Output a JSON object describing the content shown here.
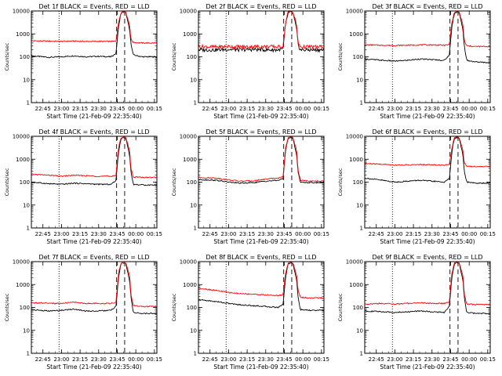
{
  "start_label": "Start Time (21-Feb-09 22:35:40)",
  "colors": {
    "events": "#000000",
    "lld": "#ff0000",
    "axes": "#000000",
    "background": "#ffffff"
  },
  "chart_data": [
    {
      "type": "line",
      "title": "Det 1f BLACK = Events, RED = LLD",
      "ylabel": "Counts/sec",
      "xlabel": "Start Time (21-Feb-09 22:35:40)",
      "x_ticks": [
        "22:45",
        "23:00",
        "23:15",
        "23:30",
        "23:45",
        "00:00",
        "00:15"
      ],
      "y_ticks": [
        "1",
        "10",
        "100",
        "1000",
        "10000"
      ],
      "yscale": "log",
      "ylim": [
        1,
        10000
      ],
      "xlim": [
        "22:35:40",
        "00:17:00"
      ],
      "grid": false,
      "series": [
        {
          "color": "#000000",
          "x": [
            "22:35:40",
            "22:50",
            "23:00",
            "23:10",
            "23:20",
            "23:30",
            "23:40",
            "23:44",
            "23:46",
            "23:48",
            "23:50",
            "23:52",
            "23:55",
            "23:56",
            "23:58",
            "00:05",
            "00:17"
          ],
          "y": [
            110,
            95,
            100,
            110,
            100,
            105,
            100,
            140,
            2000,
            8000,
            9000,
            8000,
            1500,
            400,
            120,
            100,
            100
          ]
        },
        {
          "color": "#ff0000",
          "x": [
            "22:35:40",
            "22:50",
            "23:00",
            "23:10",
            "23:20",
            "23:30",
            "23:40",
            "23:44",
            "23:46",
            "23:48",
            "23:50",
            "23:52",
            "23:55",
            "23:56",
            "23:58",
            "00:05",
            "00:17"
          ],
          "y": [
            500,
            480,
            470,
            480,
            470,
            470,
            470,
            480,
            3000,
            8500,
            9500,
            8500,
            2500,
            600,
            420,
            400,
            400
          ]
        }
      ]
    },
    {
      "type": "line",
      "title": "Det 2f BLACK = Events, RED = LLD",
      "ylabel": "Counts/sec",
      "xlabel": "Start Time (21-Feb-09 22:35:40)",
      "x_ticks": [
        "22:45",
        "23:00",
        "23:15",
        "23:30",
        "23:45",
        "00:00",
        "00:15"
      ],
      "y_ticks": [
        "1",
        "10",
        "100",
        "1000",
        "10000"
      ],
      "yscale": "log",
      "ylim": [
        1,
        10000
      ],
      "xlim": [
        "22:35:40",
        "00:17:00"
      ],
      "grid": false,
      "series": [
        {
          "color": "#000000",
          "x": [
            "22:35:40",
            "22:50",
            "23:00",
            "23:10",
            "23:20",
            "23:30",
            "23:40",
            "23:44",
            "23:46",
            "23:48",
            "23:50",
            "23:52",
            "23:55",
            "23:56",
            "23:58",
            "00:05",
            "00:17"
          ],
          "y": [
            200,
            200,
            210,
            200,
            210,
            200,
            200,
            220,
            2500,
            8000,
            9000,
            8000,
            1500,
            350,
            200,
            200,
            200
          ]
        },
        {
          "color": "#ff0000",
          "x": [
            "22:35:40",
            "22:50",
            "23:00",
            "23:10",
            "23:20",
            "23:30",
            "23:40",
            "23:44",
            "23:46",
            "23:48",
            "23:50",
            "23:52",
            "23:55",
            "23:56",
            "23:58",
            "00:05",
            "00:17"
          ],
          "y": [
            280,
            270,
            280,
            270,
            280,
            280,
            270,
            290,
            3000,
            8500,
            9500,
            8500,
            2500,
            400,
            270,
            270,
            270
          ]
        }
      ]
    },
    {
      "type": "line",
      "title": "Det 3f BLACK = Events, RED = LLD",
      "ylabel": "Counts/sec",
      "xlabel": "Start Time (21-Feb-09 22:35:40)",
      "x_ticks": [
        "22:45",
        "23:00",
        "23:15",
        "23:30",
        "23:45",
        "00:00",
        "00:15"
      ],
      "y_ticks": [
        "1",
        "10",
        "100",
        "1000",
        "10000"
      ],
      "yscale": "log",
      "ylim": [
        1,
        10000
      ],
      "xlim": [
        "22:35:40",
        "00:17:00"
      ],
      "grid": false,
      "series": [
        {
          "color": "#000000",
          "x": [
            "22:35:40",
            "22:50",
            "23:00",
            "23:10",
            "23:20",
            "23:30",
            "23:40",
            "23:44",
            "23:46",
            "23:48",
            "23:50",
            "23:52",
            "23:55",
            "23:56",
            "23:58",
            "00:05",
            "00:17"
          ],
          "y": [
            80,
            70,
            65,
            70,
            80,
            75,
            70,
            120,
            2000,
            8000,
            9000,
            8000,
            1500,
            300,
            70,
            60,
            55
          ]
        },
        {
          "color": "#ff0000",
          "x": [
            "22:35:40",
            "22:50",
            "23:00",
            "23:10",
            "23:20",
            "23:30",
            "23:40",
            "23:44",
            "23:46",
            "23:48",
            "23:50",
            "23:52",
            "23:55",
            "23:56",
            "23:58",
            "00:05",
            "00:17"
          ],
          "y": [
            330,
            320,
            310,
            320,
            330,
            330,
            320,
            340,
            3000,
            8500,
            9500,
            8500,
            2500,
            500,
            300,
            280,
            280
          ]
        }
      ]
    },
    {
      "type": "line",
      "title": "Det 4f BLACK = Events, RED = LLD",
      "ylabel": "Counts/sec",
      "xlabel": "Start Time (21-Feb-09 22:35:40)",
      "x_ticks": [
        "22:45",
        "23:00",
        "23:15",
        "23:30",
        "23:45",
        "00:00",
        "00:15"
      ],
      "y_ticks": [
        "1",
        "10",
        "100",
        "1000",
        "10000"
      ],
      "yscale": "log",
      "ylim": [
        1,
        10000
      ],
      "xlim": [
        "22:35:40",
        "00:17:00"
      ],
      "grid": false,
      "series": [
        {
          "color": "#000000",
          "x": [
            "22:35:40",
            "22:50",
            "23:00",
            "23:10",
            "23:20",
            "23:30",
            "23:40",
            "23:44",
            "23:46",
            "23:48",
            "23:50",
            "23:52",
            "23:55",
            "23:56",
            "23:58",
            "00:05",
            "00:17"
          ],
          "y": [
            100,
            85,
            80,
            90,
            85,
            80,
            80,
            120,
            2000,
            8000,
            9000,
            8000,
            1500,
            300,
            80,
            75,
            75
          ]
        },
        {
          "color": "#ff0000",
          "x": [
            "22:35:40",
            "22:50",
            "23:00",
            "23:10",
            "23:20",
            "23:30",
            "23:40",
            "23:44",
            "23:46",
            "23:48",
            "23:50",
            "23:52",
            "23:55",
            "23:56",
            "23:58",
            "00:05",
            "00:17"
          ],
          "y": [
            220,
            200,
            180,
            200,
            190,
            180,
            180,
            200,
            3000,
            8500,
            9500,
            8500,
            2500,
            400,
            170,
            160,
            160
          ]
        }
      ]
    },
    {
      "type": "line",
      "title": "Det 5f BLACK = Events, RED = LLD",
      "ylabel": "Counts/sec",
      "xlabel": "Start Time (21-Feb-09 22:35:40)",
      "x_ticks": [
        "22:45",
        "23:00",
        "23:15",
        "23:30",
        "23:45",
        "00:00",
        "00:15"
      ],
      "y_ticks": [
        "1",
        "10",
        "100",
        "1000",
        "10000"
      ],
      "yscale": "log",
      "ylim": [
        1,
        10000
      ],
      "xlim": [
        "22:35:40",
        "00:17:00"
      ],
      "grid": false,
      "series": [
        {
          "color": "#000000",
          "x": [
            "22:35:40",
            "22:50",
            "23:00",
            "23:10",
            "23:20",
            "23:30",
            "23:40",
            "23:44",
            "23:46",
            "23:48",
            "23:50",
            "23:52",
            "23:55",
            "23:56",
            "23:58",
            "00:05",
            "00:17"
          ],
          "y": [
            130,
            120,
            100,
            90,
            95,
            110,
            120,
            140,
            2500,
            8000,
            9000,
            8000,
            1500,
            300,
            100,
            95,
            95
          ]
        },
        {
          "color": "#ff0000",
          "x": [
            "22:35:40",
            "22:50",
            "23:00",
            "23:10",
            "23:20",
            "23:30",
            "23:40",
            "23:44",
            "23:46",
            "23:48",
            "23:50",
            "23:52",
            "23:55",
            "23:56",
            "23:58",
            "00:05",
            "00:17"
          ],
          "y": [
            160,
            150,
            125,
            110,
            115,
            135,
            150,
            170,
            3000,
            8500,
            9500,
            8500,
            2500,
            350,
            120,
            110,
            110
          ]
        }
      ]
    },
    {
      "type": "line",
      "title": "Det 6f BLACK = Events, RED = LLD",
      "ylabel": "Counts/sec",
      "xlabel": "Start Time (21-Feb-09 22:35:40)",
      "x_ticks": [
        "22:45",
        "23:00",
        "23:15",
        "23:30",
        "23:45",
        "00:00",
        "00:15"
      ],
      "y_ticks": [
        "1",
        "10",
        "100",
        "1000",
        "10000"
      ],
      "yscale": "log",
      "ylim": [
        1,
        10000
      ],
      "xlim": [
        "22:35:40",
        "00:17:00"
      ],
      "grid": false,
      "series": [
        {
          "color": "#000000",
          "x": [
            "22:35:40",
            "22:50",
            "23:00",
            "23:10",
            "23:20",
            "23:30",
            "23:40",
            "23:44",
            "23:46",
            "23:48",
            "23:50",
            "23:52",
            "23:55",
            "23:56",
            "23:58",
            "00:05",
            "00:17"
          ],
          "y": [
            150,
            120,
            100,
            110,
            120,
            110,
            100,
            140,
            2000,
            8000,
            9000,
            8000,
            1500,
            300,
            100,
            90,
            90
          ]
        },
        {
          "color": "#ff0000",
          "x": [
            "22:35:40",
            "22:50",
            "23:00",
            "23:10",
            "23:20",
            "23:30",
            "23:40",
            "23:44",
            "23:46",
            "23:48",
            "23:50",
            "23:52",
            "23:55",
            "23:56",
            "23:58",
            "00:05",
            "00:17"
          ],
          "y": [
            650,
            600,
            560,
            560,
            580,
            570,
            550,
            580,
            3000,
            8500,
            9500,
            8500,
            2500,
            700,
            500,
            480,
            480
          ]
        }
      ]
    },
    {
      "type": "line",
      "title": "Det 7f BLACK = Events, RED = LLD",
      "ylabel": "Counts/sec",
      "xlabel": "Start Time (21-Feb-09 22:35:40)",
      "x_ticks": [
        "22:45",
        "23:00",
        "23:15",
        "23:30",
        "23:45",
        "00:00",
        "00:15"
      ],
      "y_ticks": [
        "1",
        "10",
        "100",
        "1000",
        "10000"
      ],
      "yscale": "log",
      "ylim": [
        1,
        10000
      ],
      "xlim": [
        "22:35:40",
        "00:17:00"
      ],
      "grid": false,
      "series": [
        {
          "color": "#000000",
          "x": [
            "22:35:40",
            "22:50",
            "23:00",
            "23:10",
            "23:20",
            "23:30",
            "23:40",
            "23:44",
            "23:46",
            "23:48",
            "23:50",
            "23:52",
            "23:55",
            "23:56",
            "23:58",
            "00:05",
            "00:17"
          ],
          "y": [
            80,
            70,
            75,
            85,
            70,
            70,
            75,
            110,
            2000,
            8000,
            9000,
            8000,
            1500,
            300,
            60,
            55,
            55
          ]
        },
        {
          "color": "#ff0000",
          "x": [
            "22:35:40",
            "22:50",
            "23:00",
            "23:10",
            "23:20",
            "23:30",
            "23:40",
            "23:44",
            "23:46",
            "23:48",
            "23:50",
            "23:52",
            "23:55",
            "23:56",
            "23:58",
            "00:05",
            "00:17"
          ],
          "y": [
            160,
            150,
            150,
            170,
            150,
            150,
            150,
            170,
            3000,
            8500,
            9500,
            8500,
            2500,
            400,
            120,
            110,
            110
          ]
        }
      ]
    },
    {
      "type": "line",
      "title": "Det 8f BLACK = Events, RED = LLD",
      "ylabel": "Counts/sec",
      "xlabel": "Start Time (21-Feb-09 22:35:40)",
      "x_ticks": [
        "22:45",
        "23:00",
        "23:15",
        "23:30",
        "23:45",
        "00:00",
        "00:15"
      ],
      "y_ticks": [
        "1",
        "10",
        "100",
        "1000",
        "10000"
      ],
      "yscale": "log",
      "ylim": [
        1,
        10000
      ],
      "xlim": [
        "22:35:40",
        "00:17:00"
      ],
      "grid": false,
      "series": [
        {
          "color": "#000000",
          "x": [
            "22:35:40",
            "22:50",
            "23:00",
            "23:10",
            "23:20",
            "23:30",
            "23:40",
            "23:44",
            "23:46",
            "23:48",
            "23:50",
            "23:52",
            "23:55",
            "23:56",
            "23:58",
            "00:05",
            "00:17"
          ],
          "y": [
            220,
            180,
            150,
            130,
            120,
            110,
            100,
            140,
            2000,
            8000,
            9000,
            8000,
            1500,
            300,
            80,
            75,
            75
          ]
        },
        {
          "color": "#ff0000",
          "x": [
            "22:35:40",
            "22:50",
            "23:00",
            "23:10",
            "23:20",
            "23:30",
            "23:40",
            "23:44",
            "23:46",
            "23:48",
            "23:50",
            "23:52",
            "23:55",
            "23:56",
            "23:58",
            "00:05",
            "00:17"
          ],
          "y": [
            700,
            550,
            450,
            400,
            380,
            350,
            330,
            360,
            3000,
            8500,
            9500,
            8500,
            2500,
            600,
            280,
            260,
            260
          ]
        }
      ]
    },
    {
      "type": "line",
      "title": "Det 9f BLACK = Events, RED = LLD",
      "ylabel": "Counts/sec",
      "xlabel": "Start Time (21-Feb-09 22:35:40)",
      "x_ticks": [
        "22:45",
        "23:00",
        "23:15",
        "23:30",
        "23:45",
        "00:00",
        "00:15"
      ],
      "y_ticks": [
        "1",
        "10",
        "100",
        "1000",
        "10000"
      ],
      "yscale": "log",
      "ylim": [
        1,
        10000
      ],
      "xlim": [
        "22:35:40",
        "00:17:00"
      ],
      "grid": false,
      "series": [
        {
          "color": "#000000",
          "x": [
            "22:35:40",
            "22:50",
            "23:00",
            "23:10",
            "23:20",
            "23:30",
            "23:40",
            "23:44",
            "23:46",
            "23:48",
            "23:50",
            "23:52",
            "23:55",
            "23:56",
            "23:58",
            "00:05",
            "00:17"
          ],
          "y": [
            70,
            65,
            60,
            65,
            70,
            65,
            60,
            110,
            2000,
            8000,
            9000,
            8000,
            1500,
            300,
            60,
            55,
            55
          ]
        },
        {
          "color": "#ff0000",
          "x": [
            "22:35:40",
            "22:50",
            "23:00",
            "23:10",
            "23:20",
            "23:30",
            "23:40",
            "23:44",
            "23:46",
            "23:48",
            "23:50",
            "23:52",
            "23:55",
            "23:56",
            "23:58",
            "00:05",
            "00:17"
          ],
          "y": [
            140,
            150,
            140,
            150,
            160,
            150,
            150,
            170,
            3000,
            8500,
            9500,
            8500,
            2500,
            400,
            140,
            135,
            135
          ]
        }
      ]
    }
  ]
}
